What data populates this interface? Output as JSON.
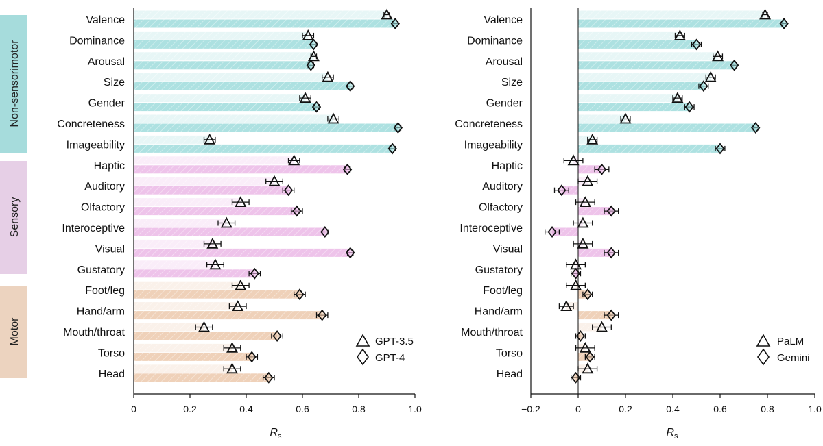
{
  "colors": {
    "Non-sensorimotor": "#9fdcdc",
    "Sensory": "#ebb8e6",
    "Motor": "#ecc9ad"
  },
  "group_bands": [
    {
      "name": "Non-sensorimotor",
      "label": "Non-sensorimotor"
    },
    {
      "name": "Sensory",
      "label": "Sensory"
    },
    {
      "name": "Motor",
      "label": "Motor"
    }
  ],
  "chart_data": [
    {
      "type": "bar",
      "panel": "left",
      "xlabel": "R",
      "xlabel_sub": "s",
      "xlim": [
        0,
        1.0
      ],
      "ticks": [
        0,
        0.2,
        0.4,
        0.6,
        0.8,
        1.0
      ],
      "tick_labels": [
        "0",
        "0.2",
        "0.4",
        "0.6",
        "0.8",
        "1.0"
      ],
      "legend_position": "bottom-right",
      "categories": [
        "Valence",
        "Dominance",
        "Arousal",
        "Size",
        "Gender",
        "Concreteness",
        "Imageability",
        "Haptic",
        "Auditory",
        "Olfactory",
        "Interoceptive",
        "Visual",
        "Gustatory",
        "Foot/leg",
        "Hand/arm",
        "Mouth/throat",
        "Torso",
        "Head"
      ],
      "groups": [
        "Non-sensorimotor",
        "Non-sensorimotor",
        "Non-sensorimotor",
        "Non-sensorimotor",
        "Non-sensorimotor",
        "Non-sensorimotor",
        "Non-sensorimotor",
        "Sensory",
        "Sensory",
        "Sensory",
        "Sensory",
        "Sensory",
        "Sensory",
        "Motor",
        "Motor",
        "Motor",
        "Motor",
        "Motor"
      ],
      "series": [
        {
          "name": "GPT-3.5",
          "marker": "triangle",
          "values": [
            0.9,
            0.62,
            0.64,
            0.69,
            0.61,
            0.71,
            0.27,
            0.57,
            0.5,
            0.38,
            0.33,
            0.28,
            0.29,
            0.38,
            0.37,
            0.25,
            0.35,
            0.35
          ],
          "err": [
            0.01,
            0.02,
            0.01,
            0.02,
            0.02,
            0.02,
            0.02,
            0.02,
            0.03,
            0.03,
            0.03,
            0.03,
            0.03,
            0.03,
            0.03,
            0.03,
            0.03,
            0.03
          ]
        },
        {
          "name": "GPT-4",
          "marker": "diamond",
          "values": [
            0.93,
            0.64,
            0.63,
            0.77,
            0.65,
            0.94,
            0.92,
            0.76,
            0.55,
            0.58,
            0.68,
            0.77,
            0.43,
            0.59,
            0.67,
            0.51,
            0.42,
            0.48
          ],
          "err": [
            0.01,
            0.01,
            0.01,
            0.01,
            0.01,
            0.01,
            0.01,
            0.01,
            0.02,
            0.02,
            0.01,
            0.01,
            0.02,
            0.02,
            0.02,
            0.02,
            0.02,
            0.02
          ]
        }
      ]
    },
    {
      "type": "bar",
      "panel": "right",
      "xlabel": "R",
      "xlabel_sub": "s",
      "xlim": [
        -0.2,
        1.0
      ],
      "ticks": [
        -0.2,
        0,
        0.2,
        0.4,
        0.6,
        0.8,
        1.0
      ],
      "tick_labels": [
        "−0.2",
        "0",
        "0.2",
        "0.4",
        "0.6",
        "0.8",
        "1.0"
      ],
      "legend_position": "bottom-right",
      "categories": [
        "Valence",
        "Dominance",
        "Arousal",
        "Size",
        "Gender",
        "Concreteness",
        "Imageability",
        "Haptic",
        "Auditory",
        "Olfactory",
        "Interoceptive",
        "Visual",
        "Gustatory",
        "Foot/leg",
        "Hand/arm",
        "Mouth/throat",
        "Torso",
        "Head"
      ],
      "groups": [
        "Non-sensorimotor",
        "Non-sensorimotor",
        "Non-sensorimotor",
        "Non-sensorimotor",
        "Non-sensorimotor",
        "Non-sensorimotor",
        "Non-sensorimotor",
        "Sensory",
        "Sensory",
        "Sensory",
        "Sensory",
        "Sensory",
        "Sensory",
        "Motor",
        "Motor",
        "Motor",
        "Motor",
        "Motor"
      ],
      "series": [
        {
          "name": "PaLM",
          "marker": "triangle",
          "values": [
            0.79,
            0.43,
            0.59,
            0.56,
            0.42,
            0.2,
            0.06,
            -0.02,
            0.04,
            0.03,
            0.02,
            0.02,
            -0.01,
            -0.01,
            -0.05,
            0.1,
            0.03,
            0.04
          ],
          "err": [
            0.01,
            0.02,
            0.02,
            0.02,
            0.02,
            0.02,
            0.02,
            0.04,
            0.04,
            0.04,
            0.04,
            0.04,
            0.04,
            0.04,
            0.03,
            0.04,
            0.04,
            0.04
          ]
        },
        {
          "name": "Gemini",
          "marker": "diamond",
          "values": [
            0.87,
            0.5,
            0.66,
            0.53,
            0.47,
            0.75,
            0.6,
            0.1,
            -0.07,
            0.14,
            -0.11,
            0.14,
            -0.01,
            0.04,
            0.14,
            0.01,
            0.05,
            -0.01
          ],
          "err": [
            0.01,
            0.02,
            0.01,
            0.02,
            0.02,
            0.01,
            0.02,
            0.03,
            0.03,
            0.03,
            0.03,
            0.03,
            0.02,
            0.02,
            0.03,
            0.02,
            0.02,
            0.02
          ]
        }
      ]
    }
  ]
}
